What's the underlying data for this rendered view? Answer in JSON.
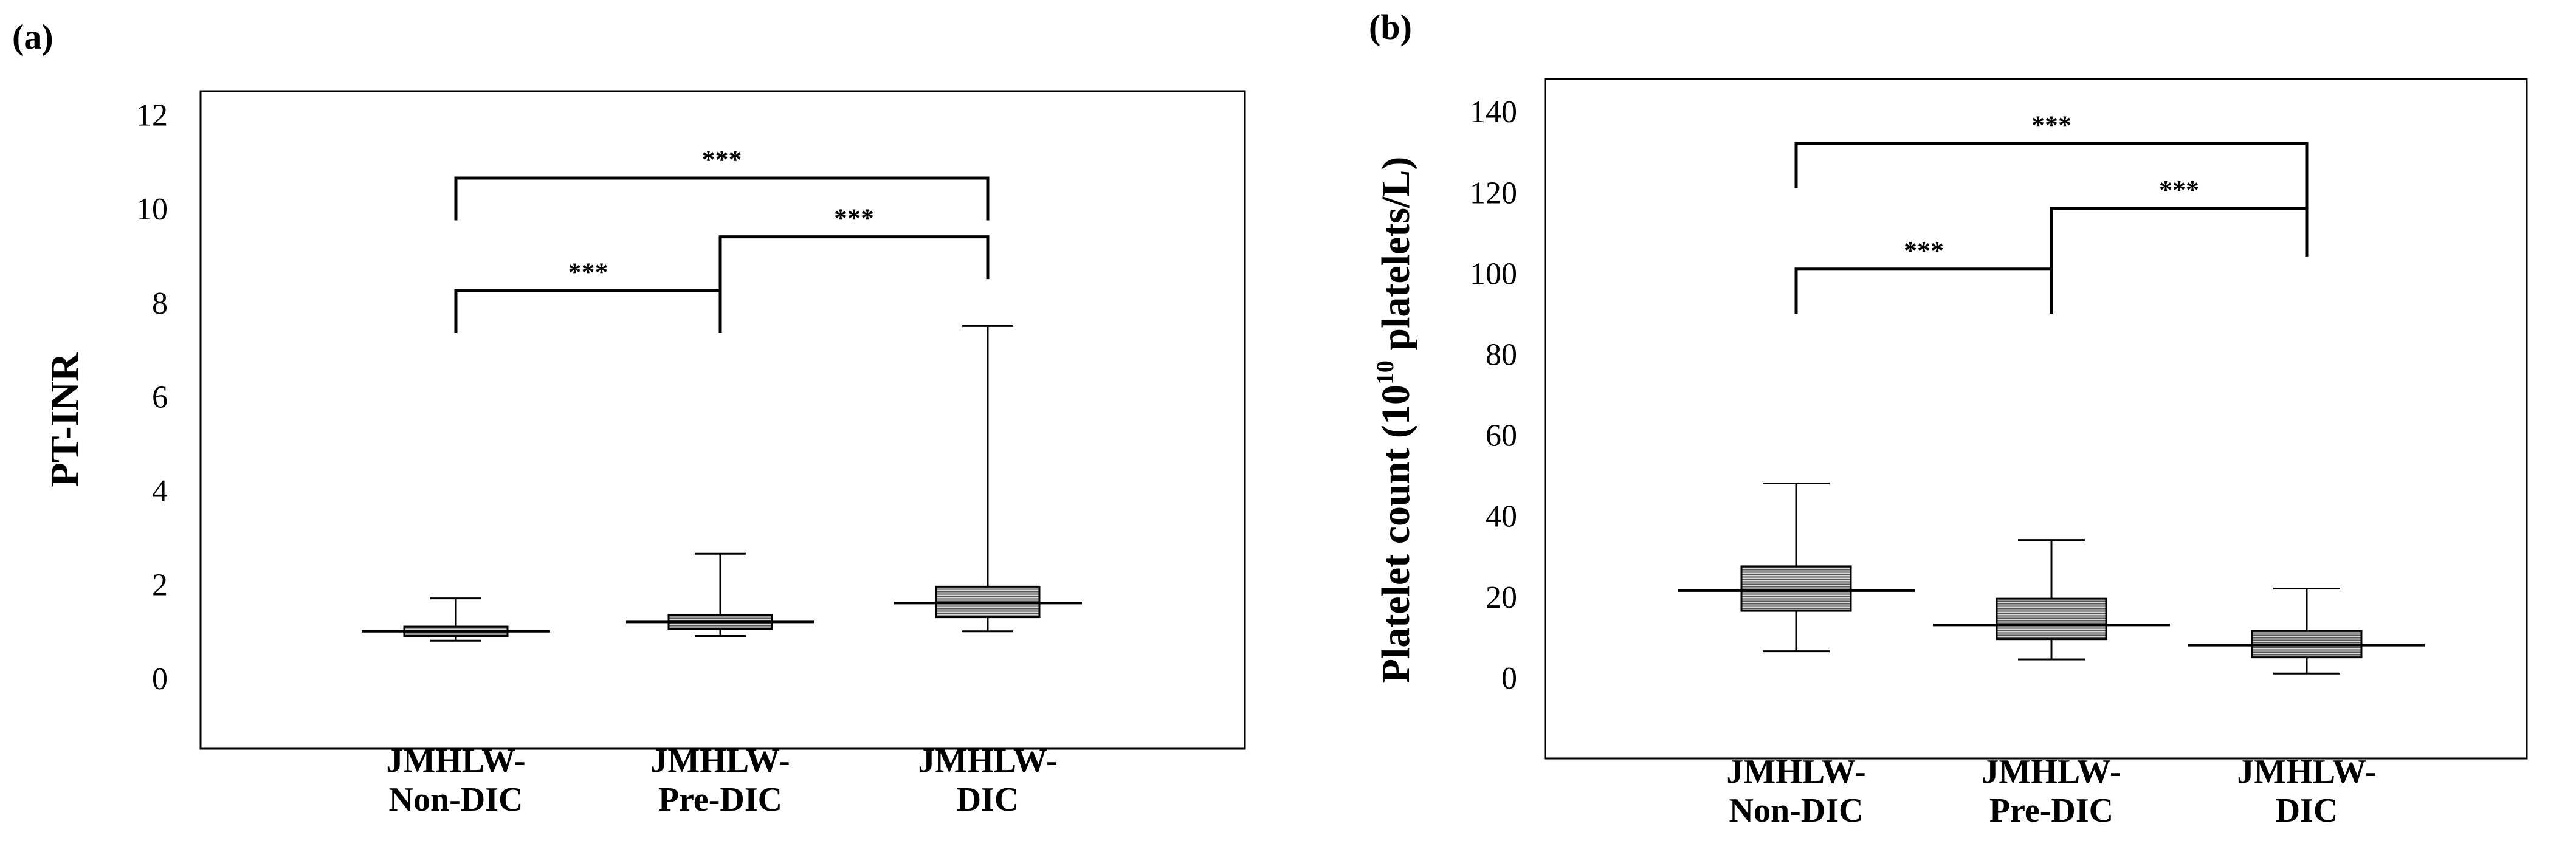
{
  "chart_data": [
    {
      "panel_label": "(a)",
      "type": "box",
      "ylabel": "PT-INR",
      "ylim": [
        -1.5,
        12.5
      ],
      "yticks": [
        "0",
        "2",
        "4",
        "6",
        "8",
        "10",
        "12"
      ],
      "categories": [
        {
          "line1": "JMHLW-",
          "line2": "Non-DIC"
        },
        {
          "line1": "JMHLW-",
          "line2": "Pre-DIC"
        },
        {
          "line1": "JMHLW-",
          "line2": "DIC"
        }
      ],
      "boxes": [
        {
          "min": 0.8,
          "q1": 0.9,
          "median": 1.0,
          "q3": 1.1,
          "max": 1.7
        },
        {
          "min": 0.9,
          "q1": 1.05,
          "median": 1.2,
          "q3": 1.35,
          "max": 2.65
        },
        {
          "min": 1.0,
          "q1": 1.3,
          "median": 1.6,
          "q3": 1.95,
          "max": 7.5
        }
      ],
      "significance": [
        {
          "from": 0,
          "to": 1,
          "label": "***",
          "level": 8.25,
          "drop_left": 7.35,
          "drop_right": 7.35
        },
        {
          "from": 1,
          "to": 2,
          "label": "***",
          "level": 9.4,
          "drop_left": 7.35,
          "drop_right": 8.5
        },
        {
          "from": 0,
          "to": 2,
          "label": "***",
          "level": 10.65,
          "drop_left": 9.75,
          "drop_right": 9.75
        }
      ]
    },
    {
      "panel_label": "(b)",
      "type": "box",
      "ylabel": "Platelet count (10",
      "ylabel_sup": "10",
      "ylabel_tail": " platelets/L)",
      "ylim": [
        -20,
        148
      ],
      "yticks": [
        "0",
        "20",
        "40",
        "60",
        "80",
        "100",
        "120",
        "140"
      ],
      "categories": [
        {
          "line1": "JMHLW-",
          "line2": "Non-DIC"
        },
        {
          "line1": "JMHLW-",
          "line2": "Pre-DIC"
        },
        {
          "line1": "JMHLW-",
          "line2": "DIC"
        }
      ],
      "boxes": [
        {
          "min": 6.5,
          "q1": 16.5,
          "median": 21.5,
          "q3": 27.5,
          "max": 48
        },
        {
          "min": 4.5,
          "q1": 9.5,
          "median": 13,
          "q3": 19.5,
          "max": 34
        },
        {
          "min": 1,
          "q1": 5,
          "median": 8,
          "q3": 11.5,
          "max": 22
        }
      ],
      "significance": [
        {
          "from": 0,
          "to": 1,
          "label": "***",
          "level": 101,
          "drop_left": 90,
          "drop_right": 90
        },
        {
          "from": 1,
          "to": 2,
          "label": "***",
          "level": 116,
          "drop_left": 90,
          "drop_right": 104
        },
        {
          "from": 0,
          "to": 2,
          "label": "***",
          "level": 132,
          "drop_left": 121,
          "drop_right": 104
        }
      ]
    }
  ]
}
